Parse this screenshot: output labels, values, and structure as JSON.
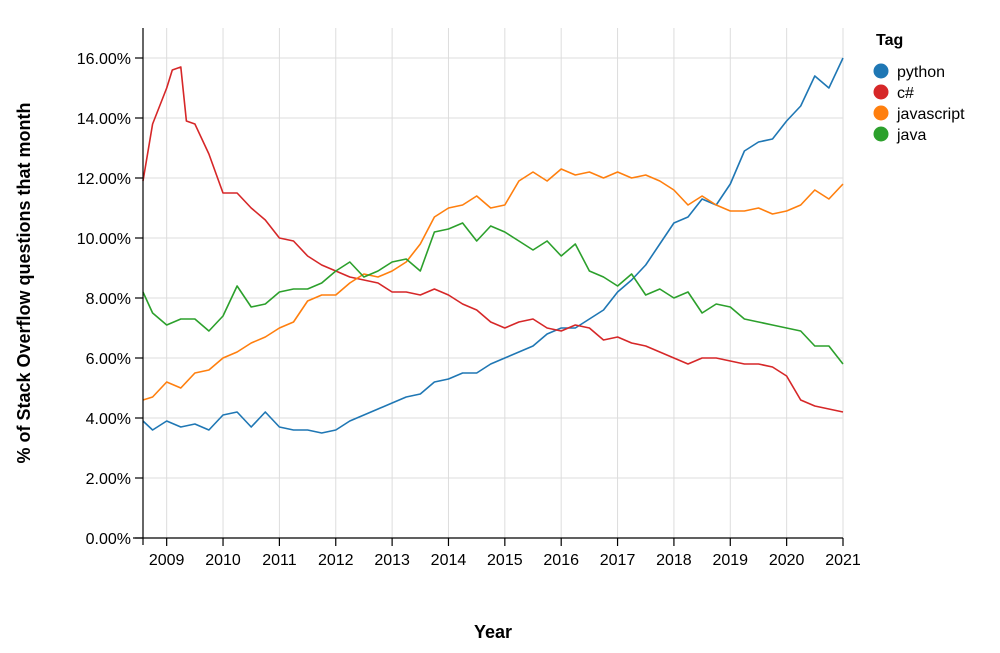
{
  "chart_data": {
    "type": "line",
    "xlabel": "Year",
    "ylabel": "% of Stack Overflow questions that month",
    "x_ticks": [
      "2009",
      "2010",
      "2011",
      "2012",
      "2013",
      "2014",
      "2015",
      "2016",
      "2017",
      "2018",
      "2019",
      "2020",
      "2021"
    ],
    "y_ticks": [
      "0.00%",
      "2.00%",
      "4.00%",
      "6.00%",
      "8.00%",
      "10.00%",
      "12.00%",
      "14.00%",
      "16.00%"
    ],
    "xlim": [
      2008.58,
      2021.0
    ],
    "ylim": [
      0,
      17
    ],
    "grid": true,
    "legend": {
      "title": "Tag",
      "placement": "right"
    },
    "series": [
      {
        "name": "python",
        "color": "#1f77b4",
        "points": [
          [
            2008.58,
            3.9
          ],
          [
            2008.75,
            3.6
          ],
          [
            2009.0,
            3.9
          ],
          [
            2009.25,
            3.7
          ],
          [
            2009.5,
            3.8
          ],
          [
            2009.75,
            3.6
          ],
          [
            2010.0,
            4.1
          ],
          [
            2010.25,
            4.2
          ],
          [
            2010.5,
            3.7
          ],
          [
            2010.75,
            4.2
          ],
          [
            2011.0,
            3.7
          ],
          [
            2011.25,
            3.6
          ],
          [
            2011.5,
            3.6
          ],
          [
            2011.75,
            3.5
          ],
          [
            2012.0,
            3.6
          ],
          [
            2012.25,
            3.9
          ],
          [
            2012.5,
            4.1
          ],
          [
            2012.75,
            4.3
          ],
          [
            2013.0,
            4.5
          ],
          [
            2013.25,
            4.7
          ],
          [
            2013.5,
            4.8
          ],
          [
            2013.75,
            5.2
          ],
          [
            2014.0,
            5.3
          ],
          [
            2014.25,
            5.5
          ],
          [
            2014.5,
            5.5
          ],
          [
            2014.75,
            5.8
          ],
          [
            2015.0,
            6.0
          ],
          [
            2015.25,
            6.2
          ],
          [
            2015.5,
            6.4
          ],
          [
            2015.75,
            6.8
          ],
          [
            2016.0,
            7.0
          ],
          [
            2016.25,
            7.0
          ],
          [
            2016.5,
            7.3
          ],
          [
            2016.75,
            7.6
          ],
          [
            2017.0,
            8.2
          ],
          [
            2017.25,
            8.6
          ],
          [
            2017.5,
            9.1
          ],
          [
            2017.75,
            9.8
          ],
          [
            2018.0,
            10.5
          ],
          [
            2018.25,
            10.7
          ],
          [
            2018.5,
            11.3
          ],
          [
            2018.75,
            11.1
          ],
          [
            2019.0,
            11.8
          ],
          [
            2019.25,
            12.9
          ],
          [
            2019.5,
            13.2
          ],
          [
            2019.75,
            13.3
          ],
          [
            2020.0,
            13.9
          ],
          [
            2020.25,
            14.4
          ],
          [
            2020.5,
            15.4
          ],
          [
            2020.75,
            15.0
          ],
          [
            2021.0,
            16.0
          ]
        ]
      },
      {
        "name": "c#",
        "color": "#d62728",
        "points": [
          [
            2008.58,
            11.9
          ],
          [
            2008.75,
            13.8
          ],
          [
            2009.0,
            15.0
          ],
          [
            2009.1,
            15.6
          ],
          [
            2009.25,
            15.7
          ],
          [
            2009.35,
            13.9
          ],
          [
            2009.5,
            13.8
          ],
          [
            2009.75,
            12.8
          ],
          [
            2010.0,
            11.5
          ],
          [
            2010.25,
            11.5
          ],
          [
            2010.5,
            11.0
          ],
          [
            2010.75,
            10.6
          ],
          [
            2011.0,
            10.0
          ],
          [
            2011.25,
            9.9
          ],
          [
            2011.5,
            9.4
          ],
          [
            2011.75,
            9.1
          ],
          [
            2012.0,
            8.9
          ],
          [
            2012.25,
            8.7
          ],
          [
            2012.5,
            8.6
          ],
          [
            2012.75,
            8.5
          ],
          [
            2013.0,
            8.2
          ],
          [
            2013.25,
            8.2
          ],
          [
            2013.5,
            8.1
          ],
          [
            2013.75,
            8.3
          ],
          [
            2014.0,
            8.1
          ],
          [
            2014.25,
            7.8
          ],
          [
            2014.5,
            7.6
          ],
          [
            2014.75,
            7.2
          ],
          [
            2015.0,
            7.0
          ],
          [
            2015.25,
            7.2
          ],
          [
            2015.5,
            7.3
          ],
          [
            2015.75,
            7.0
          ],
          [
            2016.0,
            6.9
          ],
          [
            2016.25,
            7.1
          ],
          [
            2016.5,
            7.0
          ],
          [
            2016.75,
            6.6
          ],
          [
            2017.0,
            6.7
          ],
          [
            2017.25,
            6.5
          ],
          [
            2017.5,
            6.4
          ],
          [
            2017.75,
            6.2
          ],
          [
            2018.0,
            6.0
          ],
          [
            2018.25,
            5.8
          ],
          [
            2018.5,
            6.0
          ],
          [
            2018.75,
            6.0
          ],
          [
            2019.0,
            5.9
          ],
          [
            2019.25,
            5.8
          ],
          [
            2019.5,
            5.8
          ],
          [
            2019.75,
            5.7
          ],
          [
            2020.0,
            5.4
          ],
          [
            2020.25,
            4.6
          ],
          [
            2020.5,
            4.4
          ],
          [
            2020.75,
            4.3
          ],
          [
            2021.0,
            4.2
          ]
        ]
      },
      {
        "name": "javascript",
        "color": "#ff7f0e",
        "points": [
          [
            2008.58,
            4.6
          ],
          [
            2008.75,
            4.7
          ],
          [
            2009.0,
            5.2
          ],
          [
            2009.25,
            5.0
          ],
          [
            2009.5,
            5.5
          ],
          [
            2009.75,
            5.6
          ],
          [
            2010.0,
            6.0
          ],
          [
            2010.25,
            6.2
          ],
          [
            2010.5,
            6.5
          ],
          [
            2010.75,
            6.7
          ],
          [
            2011.0,
            7.0
          ],
          [
            2011.25,
            7.2
          ],
          [
            2011.5,
            7.9
          ],
          [
            2011.75,
            8.1
          ],
          [
            2012.0,
            8.1
          ],
          [
            2012.25,
            8.5
          ],
          [
            2012.5,
            8.8
          ],
          [
            2012.75,
            8.7
          ],
          [
            2013.0,
            8.9
          ],
          [
            2013.25,
            9.2
          ],
          [
            2013.5,
            9.8
          ],
          [
            2013.75,
            10.7
          ],
          [
            2014.0,
            11.0
          ],
          [
            2014.25,
            11.1
          ],
          [
            2014.5,
            11.4
          ],
          [
            2014.75,
            11.0
          ],
          [
            2015.0,
            11.1
          ],
          [
            2015.25,
            11.9
          ],
          [
            2015.5,
            12.2
          ],
          [
            2015.75,
            11.9
          ],
          [
            2016.0,
            12.3
          ],
          [
            2016.25,
            12.1
          ],
          [
            2016.5,
            12.2
          ],
          [
            2016.75,
            12.0
          ],
          [
            2017.0,
            12.2
          ],
          [
            2017.25,
            12.0
          ],
          [
            2017.5,
            12.1
          ],
          [
            2017.75,
            11.9
          ],
          [
            2018.0,
            11.6
          ],
          [
            2018.25,
            11.1
          ],
          [
            2018.5,
            11.4
          ],
          [
            2018.75,
            11.1
          ],
          [
            2019.0,
            10.9
          ],
          [
            2019.25,
            10.9
          ],
          [
            2019.5,
            11.0
          ],
          [
            2019.75,
            10.8
          ],
          [
            2020.0,
            10.9
          ],
          [
            2020.25,
            11.1
          ],
          [
            2020.5,
            11.6
          ],
          [
            2020.75,
            11.3
          ],
          [
            2021.0,
            11.8
          ]
        ]
      },
      {
        "name": "java",
        "color": "#2ca02c",
        "points": [
          [
            2008.58,
            8.2
          ],
          [
            2008.75,
            7.5
          ],
          [
            2009.0,
            7.1
          ],
          [
            2009.25,
            7.3
          ],
          [
            2009.5,
            7.3
          ],
          [
            2009.75,
            6.9
          ],
          [
            2010.0,
            7.4
          ],
          [
            2010.25,
            8.4
          ],
          [
            2010.5,
            7.7
          ],
          [
            2010.75,
            7.8
          ],
          [
            2011.0,
            8.2
          ],
          [
            2011.25,
            8.3
          ],
          [
            2011.5,
            8.3
          ],
          [
            2011.75,
            8.5
          ],
          [
            2012.0,
            8.9
          ],
          [
            2012.25,
            9.2
          ],
          [
            2012.5,
            8.7
          ],
          [
            2012.75,
            8.9
          ],
          [
            2013.0,
            9.2
          ],
          [
            2013.25,
            9.3
          ],
          [
            2013.5,
            8.9
          ],
          [
            2013.75,
            10.2
          ],
          [
            2014.0,
            10.3
          ],
          [
            2014.25,
            10.5
          ],
          [
            2014.5,
            9.9
          ],
          [
            2014.75,
            10.4
          ],
          [
            2015.0,
            10.2
          ],
          [
            2015.25,
            9.9
          ],
          [
            2015.5,
            9.6
          ],
          [
            2015.75,
            9.9
          ],
          [
            2016.0,
            9.4
          ],
          [
            2016.25,
            9.8
          ],
          [
            2016.5,
            8.9
          ],
          [
            2016.75,
            8.7
          ],
          [
            2017.0,
            8.4
          ],
          [
            2017.25,
            8.8
          ],
          [
            2017.5,
            8.1
          ],
          [
            2017.75,
            8.3
          ],
          [
            2018.0,
            8.0
          ],
          [
            2018.25,
            8.2
          ],
          [
            2018.5,
            7.5
          ],
          [
            2018.75,
            7.8
          ],
          [
            2019.0,
            7.7
          ],
          [
            2019.25,
            7.3
          ],
          [
            2019.5,
            7.2
          ],
          [
            2019.75,
            7.1
          ],
          [
            2020.0,
            7.0
          ],
          [
            2020.25,
            6.9
          ],
          [
            2020.5,
            6.4
          ],
          [
            2020.75,
            6.4
          ],
          [
            2021.0,
            5.8
          ]
        ]
      }
    ]
  }
}
